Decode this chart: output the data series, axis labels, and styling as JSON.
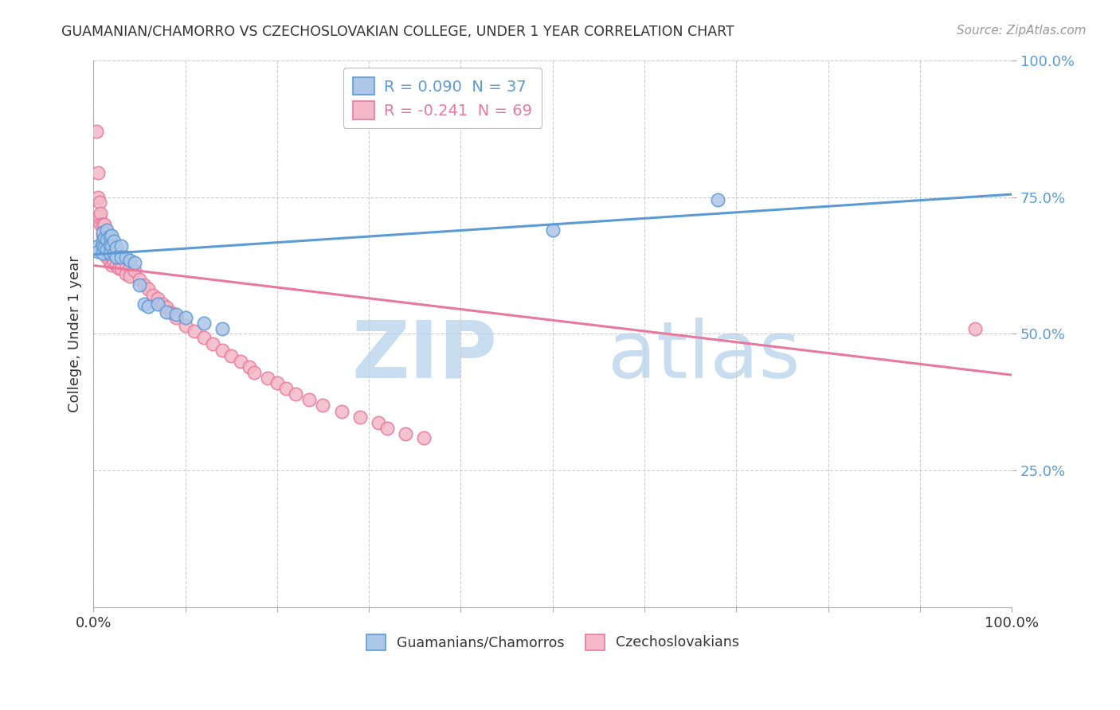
{
  "title": "GUAMANIAN/CHAMORRO VS CZECHOSLOVAKIAN COLLEGE, UNDER 1 YEAR CORRELATION CHART",
  "source": "Source: ZipAtlas.com",
  "ylabel": "College, Under 1 year",
  "xlim": [
    0.0,
    1.0
  ],
  "ylim": [
    0.0,
    1.0
  ],
  "xtick_positions": [
    0.0,
    1.0
  ],
  "xtick_labels": [
    "0.0%",
    "100.0%"
  ],
  "ytick_positions": [
    0.25,
    0.5,
    0.75,
    1.0
  ],
  "ytick_labels": [
    "25.0%",
    "50.0%",
    "75.0%",
    "100.0%"
  ],
  "blue_color": "#5b9bd5",
  "pink_color": "#e8799c",
  "blue_fill": "#aec6e8",
  "pink_fill": "#f4b8c8",
  "blue_R": 0.09,
  "blue_N": 37,
  "pink_R": -0.241,
  "pink_N": 69,
  "blue_line": [
    [
      0.0,
      0.645
    ],
    [
      1.0,
      0.755
    ]
  ],
  "pink_line": [
    [
      0.0,
      0.625
    ],
    [
      1.0,
      0.425
    ]
  ],
  "blue_points_x": [
    0.005,
    0.005,
    0.005,
    0.01,
    0.01,
    0.01,
    0.01,
    0.012,
    0.012,
    0.015,
    0.015,
    0.015,
    0.018,
    0.018,
    0.018,
    0.02,
    0.02,
    0.022,
    0.022,
    0.025,
    0.025,
    0.03,
    0.03,
    0.035,
    0.04,
    0.045,
    0.05,
    0.055,
    0.06,
    0.07,
    0.08,
    0.09,
    0.1,
    0.12,
    0.14,
    0.5,
    0.68
  ],
  "blue_points_y": [
    0.655,
    0.66,
    0.65,
    0.685,
    0.67,
    0.66,
    0.648,
    0.675,
    0.658,
    0.69,
    0.672,
    0.655,
    0.678,
    0.662,
    0.648,
    0.68,
    0.66,
    0.67,
    0.648,
    0.658,
    0.64,
    0.66,
    0.64,
    0.64,
    0.635,
    0.63,
    0.59,
    0.555,
    0.55,
    0.555,
    0.54,
    0.535,
    0.53,
    0.52,
    0.51,
    0.69,
    0.745
  ],
  "pink_points_x": [
    0.003,
    0.005,
    0.005,
    0.007,
    0.007,
    0.008,
    0.008,
    0.01,
    0.01,
    0.01,
    0.01,
    0.012,
    0.012,
    0.012,
    0.014,
    0.014,
    0.015,
    0.015,
    0.015,
    0.018,
    0.018,
    0.018,
    0.02,
    0.02,
    0.02,
    0.022,
    0.022,
    0.025,
    0.025,
    0.028,
    0.028,
    0.03,
    0.03,
    0.035,
    0.035,
    0.04,
    0.04,
    0.045,
    0.05,
    0.055,
    0.06,
    0.065,
    0.07,
    0.075,
    0.08,
    0.085,
    0.09,
    0.1,
    0.11,
    0.12,
    0.13,
    0.14,
    0.15,
    0.16,
    0.17,
    0.175,
    0.19,
    0.2,
    0.21,
    0.22,
    0.235,
    0.25,
    0.27,
    0.29,
    0.31,
    0.32,
    0.34,
    0.36,
    0.96
  ],
  "pink_points_y": [
    0.87,
    0.795,
    0.75,
    0.715,
    0.74,
    0.72,
    0.7,
    0.7,
    0.68,
    0.665,
    0.648,
    0.7,
    0.68,
    0.66,
    0.68,
    0.66,
    0.672,
    0.655,
    0.64,
    0.665,
    0.648,
    0.632,
    0.66,
    0.642,
    0.626,
    0.65,
    0.632,
    0.642,
    0.626,
    0.638,
    0.62,
    0.635,
    0.62,
    0.628,
    0.61,
    0.622,
    0.606,
    0.615,
    0.6,
    0.59,
    0.582,
    0.57,
    0.565,
    0.555,
    0.548,
    0.538,
    0.53,
    0.515,
    0.505,
    0.494,
    0.482,
    0.47,
    0.46,
    0.45,
    0.44,
    0.43,
    0.42,
    0.41,
    0.4,
    0.39,
    0.38,
    0.37,
    0.358,
    0.348,
    0.338,
    0.328,
    0.318,
    0.31,
    0.51
  ],
  "watermark_zip_color": "#c8ddf0",
  "watermark_atlas_color": "#c8ddf0",
  "grid_color": "#cccccc",
  "spine_color": "#aaaaaa",
  "tick_color": "#5b9bd5"
}
